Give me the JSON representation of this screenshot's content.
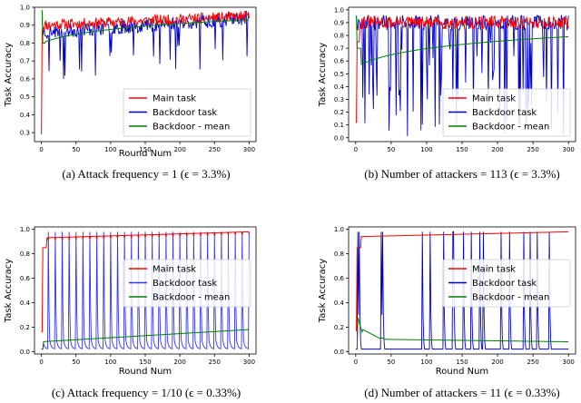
{
  "chart_data": [
    {
      "type": "line",
      "panel": "a",
      "caption": "(a)  Attack frequency = 1 (ϵ = 3.3%)",
      "xlabel": "Round Num",
      "ylabel": "Task Accuracy",
      "xlim": [
        -10,
        310
      ],
      "ylim": [
        0.25,
        1.0
      ],
      "xticks": [
        0,
        50,
        100,
        150,
        200,
        250,
        300
      ],
      "yticks": [
        0.3,
        0.4,
        0.5,
        0.6,
        0.7,
        0.8,
        0.9,
        1.0
      ],
      "show_xlabel": true,
      "legend_position": "lower-right",
      "series": [
        {
          "name": "Main task",
          "color": "#ff0000",
          "pattern": "main_a"
        },
        {
          "name": "Backdoor task",
          "color": "#0000cc",
          "pattern": "bd_a"
        },
        {
          "name": "Backdoor - mean",
          "color": "#008000",
          "pattern": "mean_a"
        }
      ]
    },
    {
      "type": "line",
      "panel": "b",
      "caption": "(b)  Number of attackers = 113 (ϵ = 3.3%)",
      "xlabel": "",
      "ylabel": "Task Accuracy",
      "xlim": [
        -10,
        310
      ],
      "ylim": [
        -0.03,
        1.02
      ],
      "xticks": [
        0,
        50,
        100,
        150,
        200,
        250,
        300
      ],
      "yticks": [
        0.0,
        0.1,
        0.2,
        0.3,
        0.4,
        0.5,
        0.6,
        0.7,
        0.8,
        0.9,
        1.0
      ],
      "show_xlabel": false,
      "legend_position": "lower-right",
      "series": [
        {
          "name": "Main task",
          "color": "#ff0000",
          "pattern": "main_b"
        },
        {
          "name": "Backdoor task",
          "color": "#0000cc",
          "pattern": "bd_b"
        },
        {
          "name": "Backdoor - mean",
          "color": "#008000",
          "pattern": "mean_b"
        }
      ]
    },
    {
      "type": "line",
      "panel": "c",
      "caption": "(c)  Attack frequency = 1/10 (ϵ = 0.33%)",
      "xlabel": "Round Num",
      "ylabel": "Task Accuracy",
      "xlim": [
        -10,
        310
      ],
      "ylim": [
        -0.02,
        1.02
      ],
      "xticks": [
        0,
        50,
        100,
        150,
        200,
        250,
        300
      ],
      "yticks": [
        0.0,
        0.2,
        0.4,
        0.6,
        0.8,
        1.0
      ],
      "show_xlabel": true,
      "legend_position": "upper-right",
      "series": [
        {
          "name": "Main task",
          "color": "#ff0000",
          "pattern": "main_c"
        },
        {
          "name": "Backdoor task",
          "color": "#3333ff",
          "pattern": "bd_c"
        },
        {
          "name": "Backdoor - mean",
          "color": "#008000",
          "pattern": "mean_c"
        }
      ]
    },
    {
      "type": "line",
      "panel": "d",
      "caption": "(d)  Number of attackers = 11 (ϵ = 0.33%)",
      "xlabel": "Round Num",
      "ylabel": "Task Accuracy",
      "xlim": [
        -10,
        310
      ],
      "ylim": [
        -0.02,
        1.02
      ],
      "xticks": [
        0,
        50,
        100,
        150,
        200,
        250,
        300
      ],
      "yticks": [
        0.0,
        0.2,
        0.4,
        0.6,
        0.8,
        1.0
      ],
      "show_xlabel": true,
      "legend_position": "upper-right",
      "series": [
        {
          "name": "Main task",
          "color": "#ff0000",
          "pattern": "main_d"
        },
        {
          "name": "Backdoor task",
          "color": "#0000cc",
          "pattern": "bd_d"
        },
        {
          "name": "Backdoor - mean",
          "color": "#008000",
          "pattern": "mean_d"
        }
      ]
    }
  ]
}
